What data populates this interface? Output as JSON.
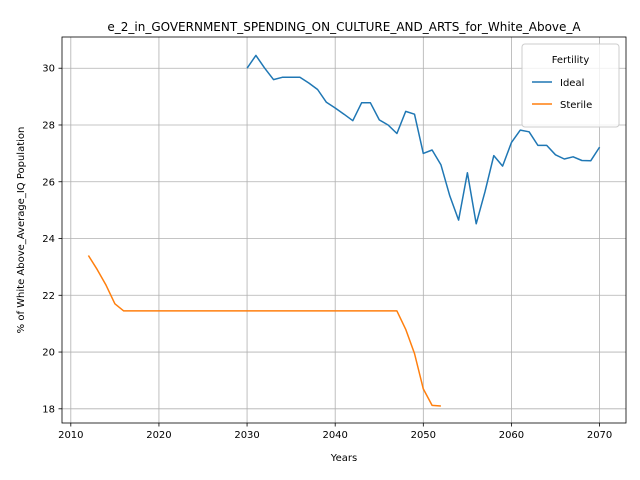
{
  "chart_data": {
    "type": "line",
    "title": "e_2_in_GOVERNMENT_SPENDING_ON_CULTURE_AND_ARTS_for_White_Above_A",
    "xlabel": "Years",
    "ylabel": "% of White Above_Average_IQ Population",
    "xlim": [
      2009,
      2073
    ],
    "ylim": [
      17.5,
      31.1
    ],
    "xticks": [
      2010,
      2020,
      2030,
      2040,
      2050,
      2060,
      2070
    ],
    "yticks": [
      18,
      20,
      22,
      24,
      26,
      28,
      30
    ],
    "grid": true,
    "legend": {
      "title": "Fertility",
      "placement": "top-right"
    },
    "series": [
      {
        "name": "Ideal",
        "color": "#1f77b4",
        "x": [
          2030,
          2031,
          2032,
          2033,
          2034,
          2035,
          2036,
          2037,
          2038,
          2039,
          2040,
          2041,
          2042,
          2043,
          2044,
          2045,
          2046,
          2047,
          2048,
          2049,
          2050,
          2051,
          2052,
          2053,
          2054,
          2055,
          2056,
          2057,
          2058,
          2059,
          2060,
          2061,
          2062,
          2063,
          2064,
          2065,
          2066,
          2067,
          2068,
          2069,
          2070
        ],
        "y": [
          30.0,
          30.45,
          30.0,
          29.6,
          29.68,
          29.68,
          29.68,
          29.48,
          29.25,
          28.8,
          28.6,
          28.38,
          28.15,
          28.78,
          28.78,
          28.18,
          28.0,
          27.7,
          28.48,
          28.38,
          27.0,
          27.12,
          26.6,
          25.5,
          24.65,
          26.32,
          24.52,
          25.65,
          26.92,
          26.55,
          27.38,
          27.82,
          27.76,
          27.28,
          27.28,
          26.95,
          26.8,
          26.88,
          26.75,
          26.74,
          27.22
        ]
      },
      {
        "name": "Sterile",
        "color": "#ff7f0e",
        "x": [
          2012,
          2013,
          2014,
          2015,
          2016,
          2017,
          2018,
          2019,
          2020,
          2021,
          2022,
          2023,
          2024,
          2025,
          2026,
          2027,
          2028,
          2029,
          2030,
          2031,
          2032,
          2033,
          2034,
          2035,
          2036,
          2037,
          2038,
          2039,
          2040,
          2041,
          2042,
          2043,
          2044,
          2045,
          2046,
          2047,
          2048,
          2049,
          2050,
          2051,
          2052
        ],
        "y": [
          23.4,
          22.9,
          22.35,
          21.7,
          21.45,
          21.45,
          21.45,
          21.45,
          21.45,
          21.45,
          21.45,
          21.45,
          21.45,
          21.45,
          21.45,
          21.45,
          21.45,
          21.45,
          21.45,
          21.45,
          21.45,
          21.45,
          21.45,
          21.45,
          21.45,
          21.45,
          21.45,
          21.45,
          21.45,
          21.45,
          21.45,
          21.45,
          21.45,
          21.45,
          21.45,
          21.45,
          20.8,
          19.95,
          18.7,
          18.12,
          18.1
        ]
      }
    ]
  }
}
